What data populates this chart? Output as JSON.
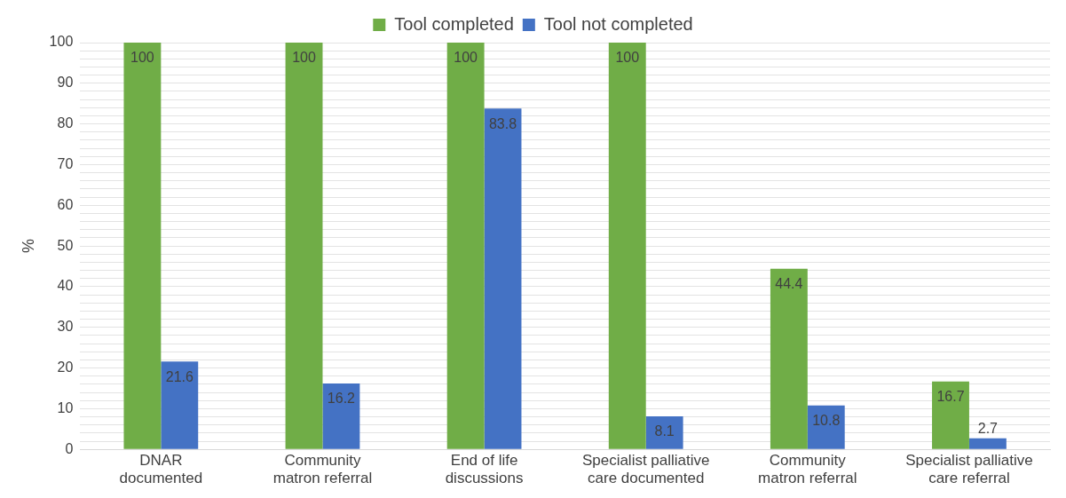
{
  "chart_data": {
    "type": "bar",
    "ylabel": "%",
    "categories": [
      "DNAR documented",
      "Community matron referral",
      "End of life discussions",
      "Specialist palliative care documented",
      "Community matron referral",
      "Specialist palliative care referral"
    ],
    "series": [
      {
        "name": "Tool completed",
        "color": "#70ad47",
        "values": [
          100,
          100,
          100,
          100,
          44.4,
          16.7
        ]
      },
      {
        "name": "Tool not completed",
        "color": "#4472c4",
        "values": [
          21.6,
          16.2,
          83.8,
          8.1,
          10.8,
          2.7
        ]
      }
    ],
    "ylim": [
      0,
      100
    ],
    "yticks": [
      0,
      {
        "value": 2,
        "label": null
      },
      {
        "value": 4,
        "label": null
      },
      {
        "value": 6,
        "label": null
      },
      {
        "value": 8,
        "label": null
      },
      10,
      {
        "value": 12,
        "label": null
      },
      {
        "value": 14,
        "label": null
      },
      {
        "value": 16,
        "label": null
      },
      {
        "value": 18,
        "label": null
      },
      20,
      {
        "value": 22,
        "label": null
      },
      {
        "value": 24,
        "label": null
      },
      {
        "value": 26,
        "label": null
      },
      {
        "value": 28,
        "label": null
      },
      30,
      {
        "value": 32,
        "label": null
      },
      {
        "value": 34,
        "label": null
      },
      {
        "value": 36,
        "label": null
      },
      {
        "value": 38,
        "label": null
      },
      40,
      {
        "value": 42,
        "label": null
      },
      {
        "value": 44,
        "label": null
      },
      {
        "value": 46,
        "label": null
      },
      {
        "value": 48,
        "label": null
      },
      50,
      {
        "value": 52,
        "label": null
      },
      {
        "value": 54,
        "label": null
      },
      {
        "value": 56,
        "label": null
      },
      {
        "value": 58,
        "label": null
      },
      60,
      {
        "value": 62,
        "label": null
      },
      {
        "value": 64,
        "label": null
      },
      {
        "value": 66,
        "label": null
      },
      {
        "value": 68,
        "label": null
      },
      70,
      {
        "value": 72,
        "label": null
      },
      {
        "value": 74,
        "label": null
      },
      {
        "value": 76,
        "label": null
      },
      {
        "value": 78,
        "label": null
      },
      80,
      {
        "value": 82,
        "label": null
      },
      {
        "value": 84,
        "label": null
      },
      {
        "value": 86,
        "label": null
      },
      {
        "value": 88,
        "label": null
      },
      90,
      {
        "value": 92,
        "label": null
      },
      {
        "value": 94,
        "label": null
      },
      {
        "value": 96,
        "label": null
      },
      {
        "value": 98,
        "label": null
      },
      100
    ],
    "grid": "y",
    "legend": "top",
    "data_labels": true
  }
}
